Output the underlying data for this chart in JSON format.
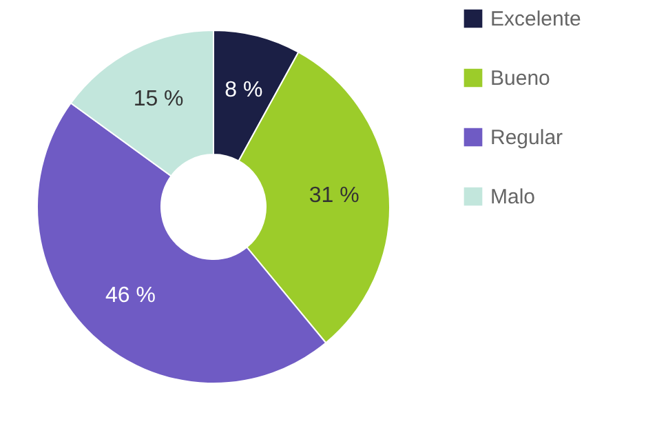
{
  "chart_data": {
    "type": "donut",
    "categories": [
      "Excelente",
      "Bueno",
      "Regular",
      "Malo"
    ],
    "values": [
      8,
      31,
      46,
      15
    ],
    "colors": [
      "#1b1f45",
      "#9ccc2a",
      "#6f5bc4",
      "#c2e6dc"
    ],
    "value_labels": [
      "8 %",
      "31 %",
      "46 %",
      "15 %"
    ],
    "legend": "right"
  }
}
